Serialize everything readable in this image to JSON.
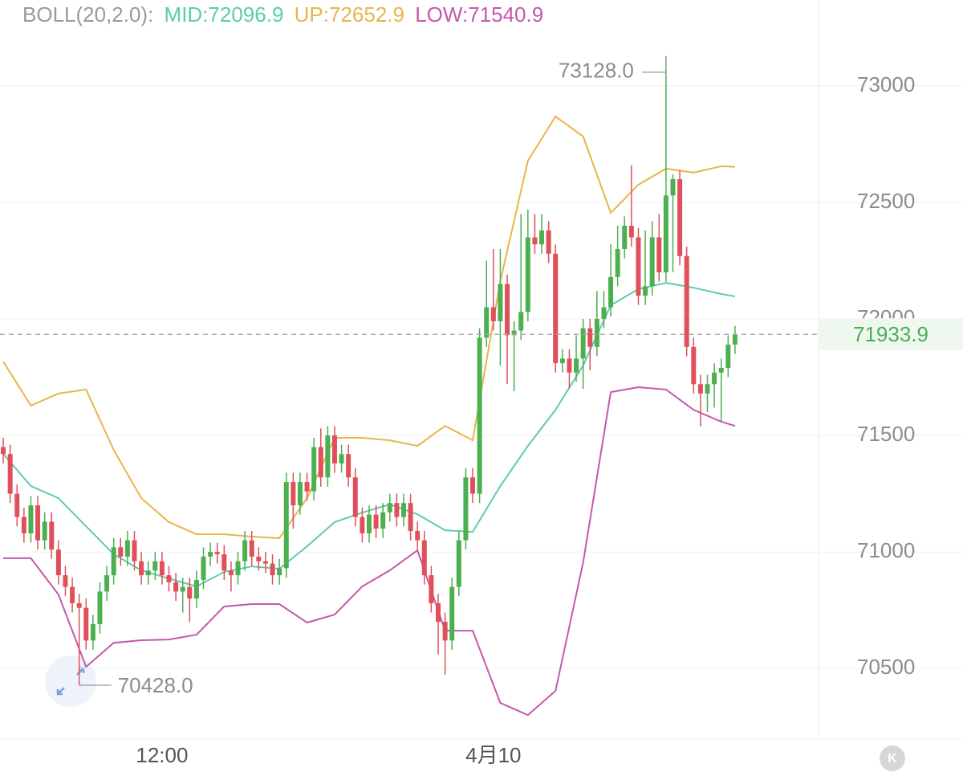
{
  "chart_data": {
    "type": "candlestick",
    "indicator": {
      "label": "BOLL(20,2.0):"
    },
    "up_color": "#4caf50",
    "down_color": "#e0505a",
    "open": [
      71450,
      71420,
      71250,
      71150,
      71080,
      71200,
      71050,
      71130,
      71010,
      70900,
      70850,
      70780,
      70760,
      70620,
      70690,
      70830,
      70900,
      71020,
      70980,
      71050,
      70960,
      70900,
      70920,
      70960,
      70900,
      70870,
      70830,
      70850,
      70800,
      70880,
      70980,
      71000,
      70990,
      70920,
      70900,
      70960,
      71050,
      70980,
      70960,
      70950,
      70900,
      70930,
      71300,
      71200,
      71300,
      71260,
      71450,
      71320,
      71500,
      71380,
      71420,
      71320,
      71150,
      71080,
      71160,
      71100,
      71170,
      71210,
      71150,
      71210,
      71090,
      71050,
      70900,
      70780,
      70700,
      70620,
      70850,
      71050,
      71320,
      71250,
      71920,
      72050,
      71990,
      72150,
      71930,
      71950,
      72030,
      72350,
      72320,
      72380,
      72280,
      71810,
      71830,
      71770,
      71830,
      71960,
      71880,
      72000,
      72050,
      72180,
      72300,
      72400,
      72350,
      72100,
      72140,
      72350,
      72200,
      72530,
      72600,
      72270,
      71880,
      71720,
      71680,
      71720,
      71770,
      71790,
      71890
    ],
    "high": [
      71490,
      71460,
      71290,
      71190,
      71240,
      71240,
      71170,
      71170,
      71050,
      70940,
      70890,
      70820,
      70800,
      70730,
      70870,
      70940,
      71060,
      71060,
      71090,
      71090,
      71000,
      70960,
      71000,
      71000,
      70940,
      70910,
      70890,
      70890,
      70920,
      71020,
      71040,
      71040,
      71030,
      70960,
      71000,
      71090,
      71090,
      71020,
      71000,
      70990,
      70970,
      71340,
      71340,
      71340,
      71340,
      71490,
      71530,
      71540,
      71540,
      71460,
      71460,
      71360,
      71190,
      71200,
      71200,
      71210,
      71250,
      71250,
      71250,
      71250,
      71130,
      71090,
      70940,
      70820,
      70740,
      70890,
      71090,
      71360,
      71360,
      71960,
      72250,
      72300,
      72300,
      72190,
      71990,
      72450,
      72470,
      72450,
      72450,
      72420,
      72320,
      71870,
      71870,
      71930,
      72000,
      72000,
      72120,
      72120,
      72320,
      72400,
      72440,
      72660,
      72390,
      72380,
      72420,
      72450,
      73128,
      72620,
      72640,
      72310,
      71920,
      71760,
      71760,
      71810,
      71830,
      71930,
      71970
    ],
    "low": [
      71380,
      71210,
      71110,
      71040,
      71040,
      71010,
      71010,
      70970,
      70860,
      70810,
      70740,
      70428,
      70580,
      70580,
      70650,
      70790,
      70860,
      70940,
      70940,
      70920,
      70860,
      70860,
      70880,
      70860,
      70830,
      70790,
      70740,
      70700,
      70760,
      70840,
      70940,
      70950,
      70880,
      70830,
      70860,
      70920,
      70940,
      70920,
      70910,
      70860,
      70860,
      70890,
      71100,
      71160,
      71220,
      71220,
      71280,
      71280,
      71340,
      71340,
      71280,
      71110,
      71040,
      71040,
      71060,
      71060,
      71130,
      71110,
      71110,
      71050,
      71010,
      70860,
      70740,
      70560,
      70473,
      70580,
      70810,
      71010,
      71210,
      71210,
      71880,
      71950,
      71800,
      71720,
      71690,
      71910,
      71990,
      72280,
      72280,
      72240,
      71770,
      71770,
      71700,
      71730,
      71700,
      71780,
      71840,
      71960,
      72010,
      72140,
      72260,
      72310,
      72060,
      72060,
      72100,
      72160,
      72160,
      72200,
      72230,
      71840,
      71680,
      71540,
      71600,
      71620,
      71560,
      71750,
      71850
    ],
    "close": [
      71420,
      71250,
      71150,
      71080,
      71200,
      71050,
      71130,
      71010,
      70900,
      70850,
      70780,
      70760,
      70620,
      70690,
      70830,
      70900,
      71020,
      70980,
      71050,
      70960,
      70900,
      70920,
      70960,
      70900,
      70870,
      70830,
      70850,
      70800,
      70880,
      70980,
      71000,
      70990,
      70920,
      70900,
      70960,
      71050,
      70980,
      70960,
      70950,
      70900,
      70930,
      71300,
      71200,
      71300,
      71260,
      71450,
      71320,
      71500,
      71380,
      71420,
      71320,
      71150,
      71080,
      71160,
      71100,
      71170,
      71210,
      71150,
      71210,
      71090,
      71050,
      70900,
      70780,
      70700,
      70620,
      70850,
      71050,
      71320,
      71250,
      71920,
      72050,
      71990,
      72150,
      71930,
      71950,
      72030,
      72350,
      72320,
      72380,
      72280,
      71810,
      71830,
      71770,
      71830,
      71960,
      71880,
      72000,
      72050,
      72180,
      72300,
      72400,
      72350,
      72100,
      72140,
      72350,
      72200,
      72530,
      72600,
      72270,
      71880,
      71720,
      71680,
      71720,
      71770,
      71790,
      71890,
      71933.9
    ],
    "series": [
      {
        "label": "MID:72096.9",
        "color": "#5dcbae",
        "x": [
          0,
          4,
          8,
          12,
          16,
          20,
          24,
          28,
          32,
          36,
          40,
          44,
          48,
          52,
          56,
          60,
          64,
          68,
          72,
          76,
          80,
          84,
          88,
          92,
          96,
          100,
          104,
          106
        ],
        "values": [
          71421,
          71283,
          71231,
          71110,
          70990,
          70921,
          70886,
          70852,
          70914,
          70938,
          70928,
          71024,
          71128,
          71169,
          71204,
          71162,
          71093,
          71086,
          71283,
          71455,
          71610,
          71800,
          72059,
          72128,
          72155,
          72134,
          72107,
          72096.9
        ]
      },
      {
        "label": "UP:72652.9",
        "color": "#e8b54a",
        "x": [
          0,
          4,
          8,
          12,
          16,
          20,
          24,
          28,
          32,
          36,
          40,
          44,
          48,
          52,
          56,
          60,
          64,
          68,
          72,
          76,
          80,
          84,
          88,
          92,
          96,
          100,
          104,
          106
        ],
        "values": [
          71817,
          71628,
          71680,
          71697,
          71438,
          71231,
          71128,
          71076,
          71076,
          71066,
          71059,
          71231,
          71490,
          71490,
          71479,
          71455,
          71541,
          71479,
          72162,
          72679,
          72869,
          72783,
          72455,
          72576,
          72645,
          72628,
          72655,
          72652.9
        ]
      },
      {
        "label": "LOW:71540.9",
        "color": "#c657ad",
        "x": [
          0,
          4,
          8,
          12,
          16,
          20,
          24,
          28,
          32,
          36,
          40,
          44,
          48,
          52,
          56,
          60,
          64,
          68,
          72,
          76,
          80,
          84,
          88,
          92,
          96,
          100,
          104,
          106
        ],
        "values": [
          70973,
          70973,
          70817,
          70507,
          70610,
          70621,
          70624,
          70645,
          70766,
          70776,
          70776,
          70697,
          70731,
          70852,
          70921,
          71007,
          70662,
          70662,
          70352,
          70300,
          70404,
          70955,
          71686,
          71707,
          71697,
          71610,
          71559,
          71540.9
        ]
      }
    ],
    "xlim": [
      -0.47,
      118.1
    ],
    "xticks": [
      {
        "value": 23,
        "label": "12:00"
      },
      {
        "value": 71,
        "label": "4月10"
      }
    ],
    "ylim": [
      70197,
      73162
    ],
    "yticks": [
      70500,
      71000,
      71500,
      72000,
      72500,
      73000
    ],
    "grid": true,
    "max_marker": {
      "index": 96,
      "value": 73128,
      "label": "73128.0"
    },
    "min_marker": {
      "index": 11,
      "value": 70428,
      "label": "70428.0"
    },
    "last_price": {
      "value": 71933.9,
      "label": "71933.9"
    },
    "k_button": "K"
  }
}
